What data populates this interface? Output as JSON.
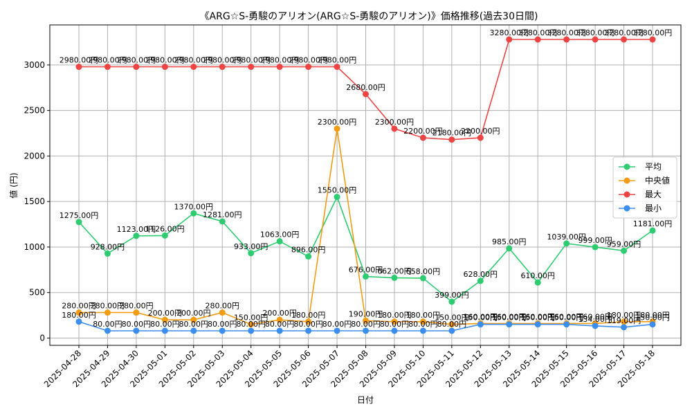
{
  "chart_data": {
    "type": "line",
    "title": "《ARG☆S-勇駿のアリオン(ARG☆S-勇駿のアリオン)》価格推移(過去30日間)",
    "xlabel": "日付",
    "ylabel": "値 (円)",
    "ylim": [
      -80,
      3440
    ],
    "yticks": [
      0,
      500,
      1000,
      1500,
      2000,
      2500,
      3000
    ],
    "grid": true,
    "legend_position": "center-right",
    "label_suffix": "円",
    "categories": [
      "2025-04-28",
      "2025-04-29",
      "2025-04-30",
      "2025-05-01",
      "2025-05-02",
      "2025-05-03",
      "2025-05-04",
      "2025-05-05",
      "2025-05-06",
      "2025-05-07",
      "2025-05-08",
      "2025-05-09",
      "2025-05-10",
      "2025-05-11",
      "2025-05-12",
      "2025-05-13",
      "2025-05-14",
      "2025-05-15",
      "2025-05-16",
      "2025-05-17",
      "2025-05-18"
    ],
    "series": [
      {
        "name": "平均",
        "color": "#2ecc71",
        "values": [
          1275,
          928,
          1123,
          1126,
          1370,
          1281,
          933,
          1063,
          896,
          1550,
          676,
          662,
          658,
          399,
          628,
          985,
          610,
          1039,
          999,
          959,
          1181
        ]
      },
      {
        "name": "中央値",
        "color": "#f39c12",
        "values": [
          280,
          280,
          280,
          200,
          200,
          280,
          150,
          200,
          180,
          2300,
          190,
          180,
          180,
          150,
          160,
          160,
          160,
          160,
          160,
          180,
          180
        ]
      },
      {
        "name": "最大",
        "color": "#ef4444",
        "values": [
          2980,
          2980,
          2980,
          2980,
          2980,
          2980,
          2980,
          2980,
          2980,
          2980,
          2680,
          2300,
          2200,
          2180,
          2200,
          3280,
          3280,
          3280,
          3280,
          3280,
          3280
        ]
      },
      {
        "name": "最小",
        "color": "#3b8ef0",
        "values": [
          180,
          80,
          80,
          80,
          80,
          80,
          80,
          80,
          80,
          80,
          80,
          80,
          80,
          80,
          150,
          150,
          150,
          150,
          134,
          119,
          150
        ]
      }
    ]
  }
}
